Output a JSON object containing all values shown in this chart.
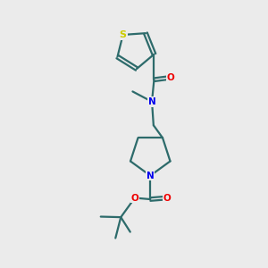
{
  "background_color": "#ebebeb",
  "bond_color": "#2d6b6b",
  "bond_width": 1.6,
  "atom_colors": {
    "S": "#cccc00",
    "N": "#0000ee",
    "O": "#ee0000",
    "C": "#2d6b6b"
  },
  "figsize": [
    3.0,
    3.0
  ],
  "dpi": 100
}
